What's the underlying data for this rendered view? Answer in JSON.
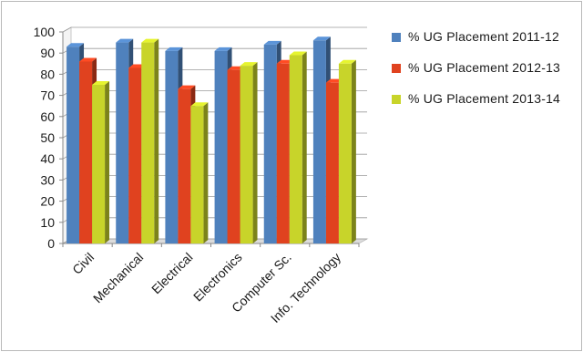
{
  "chart_data": {
    "type": "bar",
    "categories": [
      "Civil",
      "Mechanical",
      "Electrical",
      "Electronics",
      "Computer Sc.",
      "Info. Technology"
    ],
    "series": [
      {
        "name": "% UG  Placement 2011-12",
        "color": "#4f81bd",
        "values": [
          93,
          95,
          91,
          91,
          94,
          96
        ]
      },
      {
        "name": "% UG  Placement 2012-13",
        "color": "#e0421f",
        "values": [
          86,
          83,
          73,
          82,
          85,
          76
        ]
      },
      {
        "name": "% UG  Placement 2013-14",
        "color": "#c8d42a",
        "values": [
          75,
          95,
          65,
          84,
          89,
          85
        ]
      }
    ],
    "yticks": [
      "0",
      "10",
      "20",
      "30",
      "40",
      "50",
      "60",
      "70",
      "80",
      "90",
      "100"
    ],
    "ylim": [
      0,
      100
    ],
    "grid": true,
    "legend_position": "right"
  }
}
